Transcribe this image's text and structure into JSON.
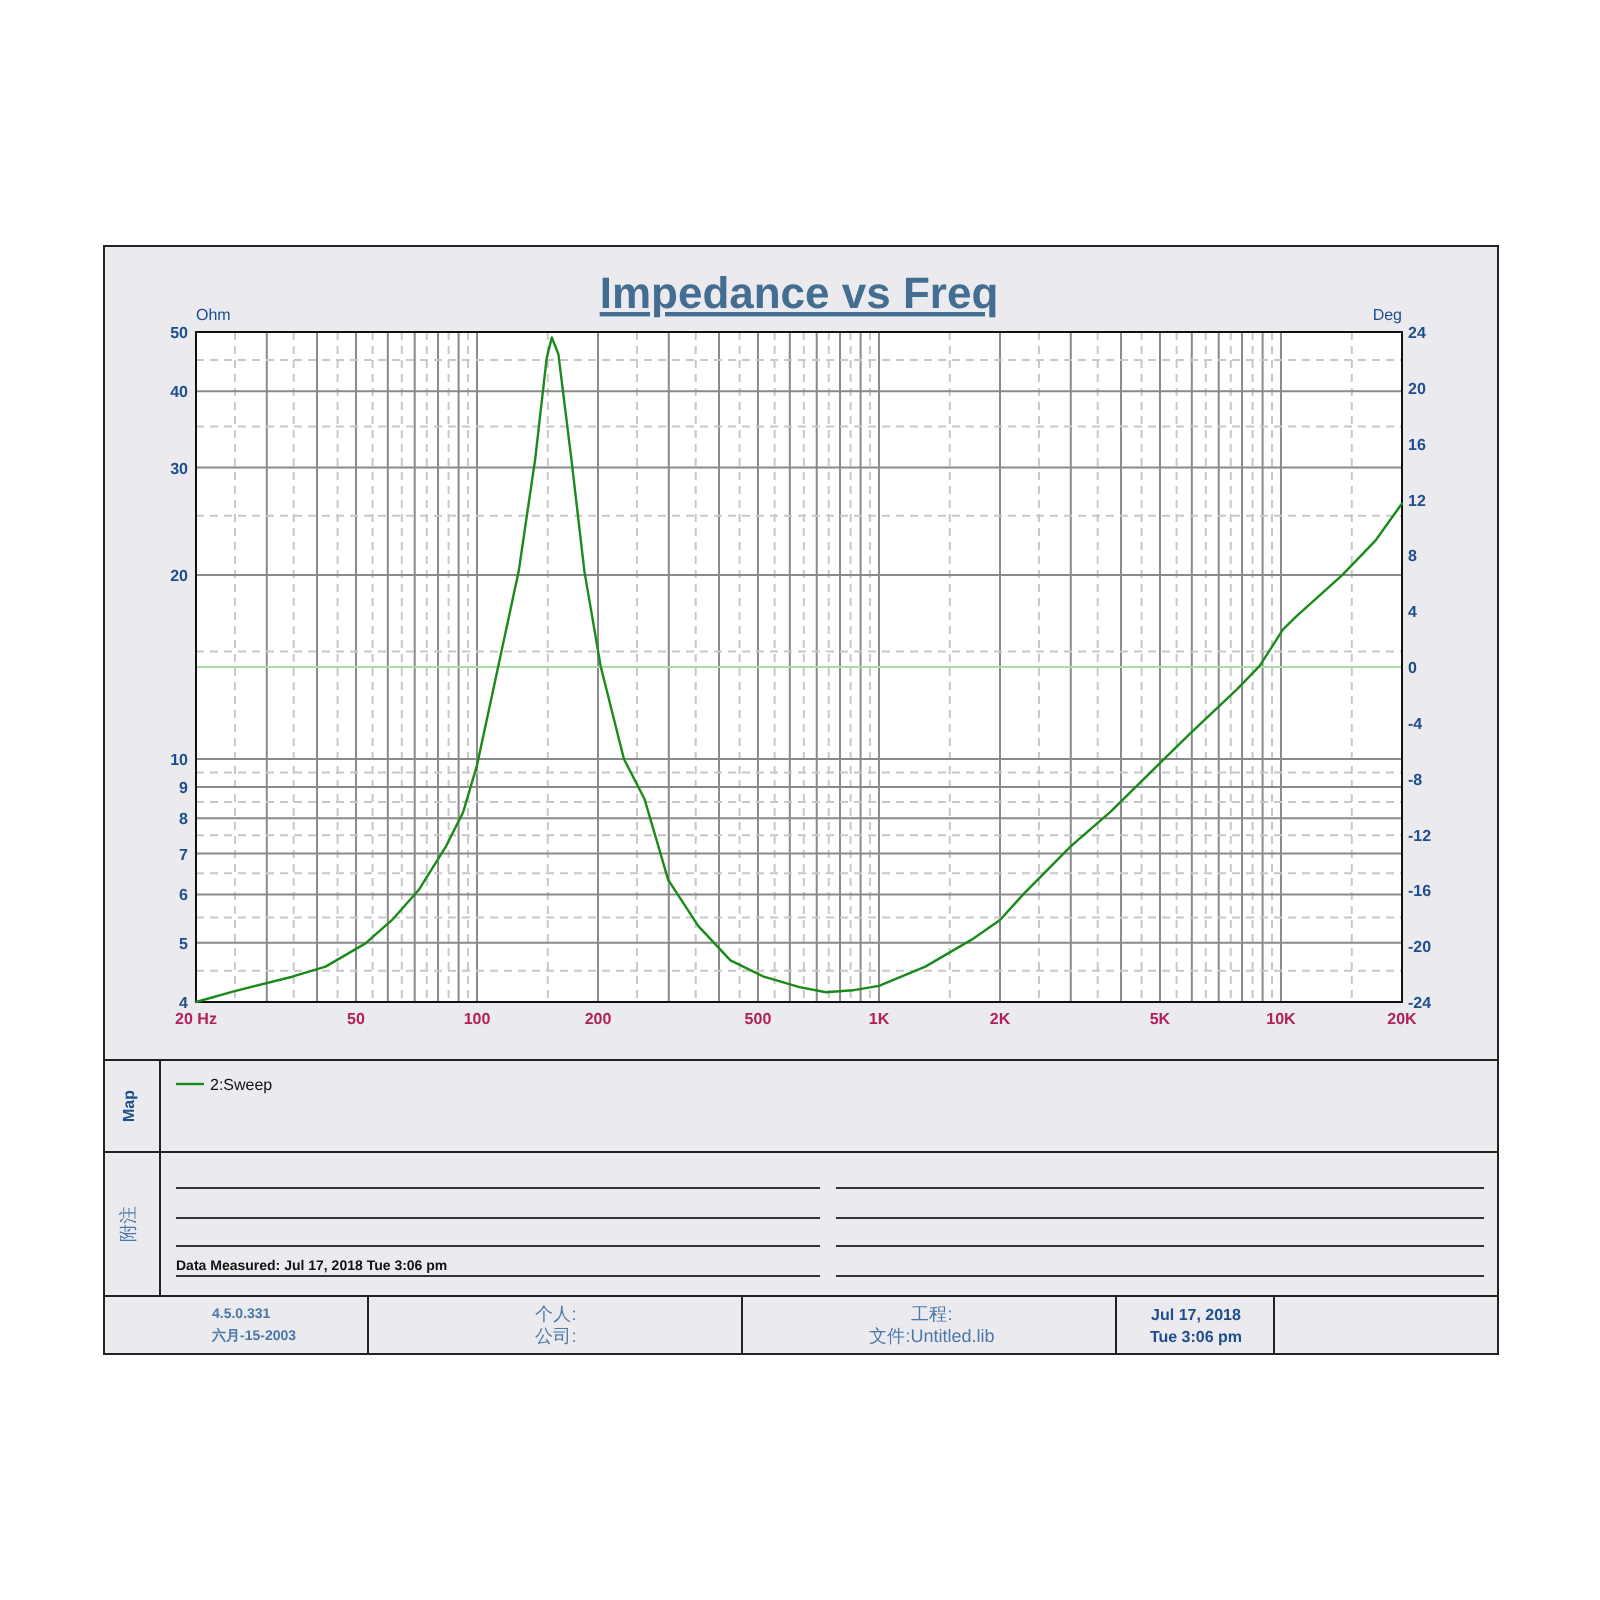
{
  "chart_data": {
    "type": "line",
    "title": "Impedance vs Freq",
    "ylabel": "Ohm",
    "y2label": "Deg",
    "x": [
      20,
      24.7,
      34.7,
      42,
      52.8,
      61.5,
      71.6,
      83.8,
      92.3,
      100,
      113,
      127,
      139.6,
      149,
      153.5,
      159.4,
      171.7,
      185,
      203,
      232,
      261,
      299,
      355,
      427,
      517,
      634,
      738,
      859,
      1000,
      1304,
      1700,
      2000,
      2300,
      3003,
      3770,
      4730,
      5940,
      7770,
      8850,
      10120,
      10900,
      14200,
      17200,
      20000
    ],
    "series": [
      {
        "name": "2:Sweep",
        "color": "#1a8a1a",
        "values": [
          4.0,
          4.16,
          4.4,
          4.57,
          4.99,
          5.45,
          6.1,
          7.2,
          8.17,
          9.76,
          14.2,
          20.3,
          31,
          45.2,
          49,
          46,
          31,
          20.3,
          14.2,
          10,
          8.6,
          6.34,
          5.33,
          4.68,
          4.4,
          4.23,
          4.15,
          4.18,
          4.25,
          4.57,
          5.06,
          5.45,
          6.03,
          7.2,
          8.2,
          9.5,
          11.0,
          13.0,
          14.2,
          16.3,
          17.1,
          20.0,
          22.8,
          26.2
        ]
      }
    ],
    "log": "xy",
    "xlim": [
      20,
      20000
    ],
    "xticks": [
      {
        "value": 20,
        "label": "20  Hz"
      },
      50,
      100,
      200,
      500,
      {
        "value": 1000,
        "label": "1K"
      },
      {
        "value": 2000,
        "label": "2K"
      },
      {
        "value": 5000,
        "label": "5K"
      },
      {
        "value": 10000,
        "label": "10K"
      },
      {
        "value": 20000,
        "label": "20K"
      }
    ],
    "ylim": [
      4,
      50
    ],
    "yticks": [
      4,
      5,
      6,
      7,
      8,
      9,
      10,
      20,
      30,
      40,
      50
    ],
    "y2lim": [
      -24,
      24
    ],
    "y2ticks": [
      -24,
      -20,
      -16,
      -12,
      -8,
      -4,
      0,
      4,
      8,
      12,
      16,
      20,
      24
    ],
    "ref_lines": [
      {
        "axis": "y2",
        "value": 0,
        "color": "#a8dca8"
      }
    ],
    "grid": true,
    "legend": "bottom",
    "annotations": [
      "Map",
      "附注",
      "Data Measured: Jul 17, 2018  Tue  3:06 pm",
      "4.5.0.331",
      "六月-15-2003",
      "个人:",
      "公司:",
      "工程:",
      "文件:Untitled.lib",
      "Jul 17, 2018",
      "Tue  3:06 pm"
    ]
  }
}
